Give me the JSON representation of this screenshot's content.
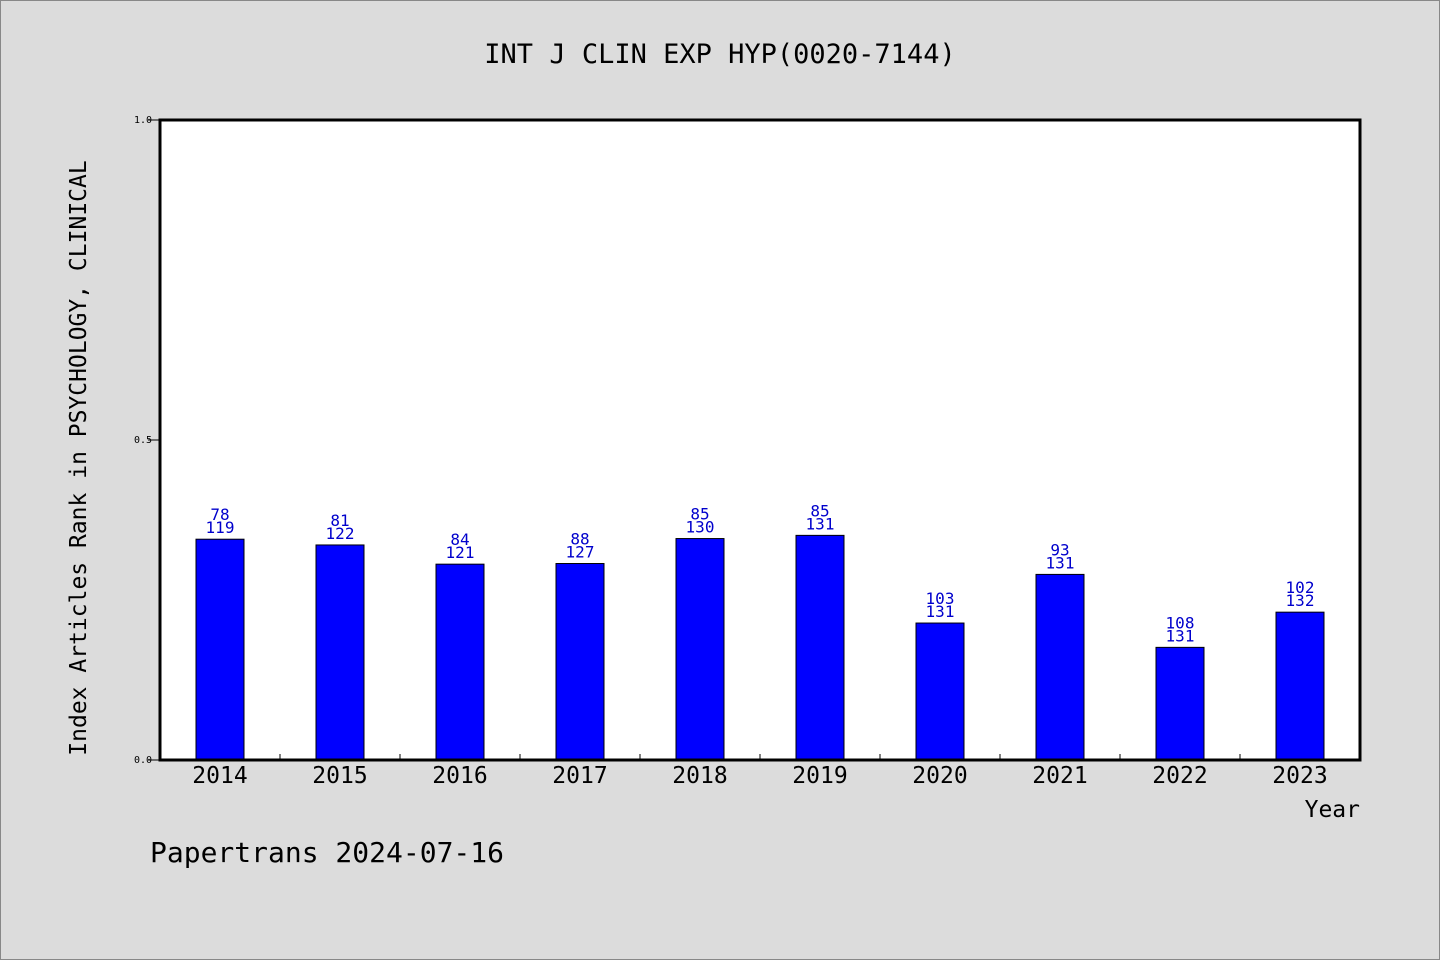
{
  "chart_data": {
    "type": "bar",
    "title": "INT J CLIN EXP HYP(0020-7144)",
    "xlabel": "Year",
    "ylabel": "Index Articles Rank in PSYCHOLOGY, CLINICAL",
    "ylim": [
      0,
      1
    ],
    "yticks": [
      "0.0",
      "0.5",
      "1.0"
    ],
    "ytick_values": [
      0,
      0.5,
      1
    ],
    "grid": false,
    "categories": [
      "2014",
      "2015",
      "2016",
      "2017",
      "2018",
      "2019",
      "2020",
      "2021",
      "2022",
      "2023"
    ],
    "values": [
      0.345,
      0.336,
      0.306,
      0.307,
      0.346,
      0.351,
      0.214,
      0.29,
      0.176,
      0.231
    ],
    "rank": [
      "78",
      "81",
      "84",
      "88",
      "85",
      "85",
      "103",
      "93",
      "108",
      "102"
    ],
    "total": [
      "119",
      "122",
      "121",
      "127",
      "130",
      "131",
      "131",
      "131",
      "131",
      "132"
    ],
    "bar_color": "#0000ff",
    "label_color": "#0000cc"
  },
  "footer": "Papertrans 2024-07-16"
}
